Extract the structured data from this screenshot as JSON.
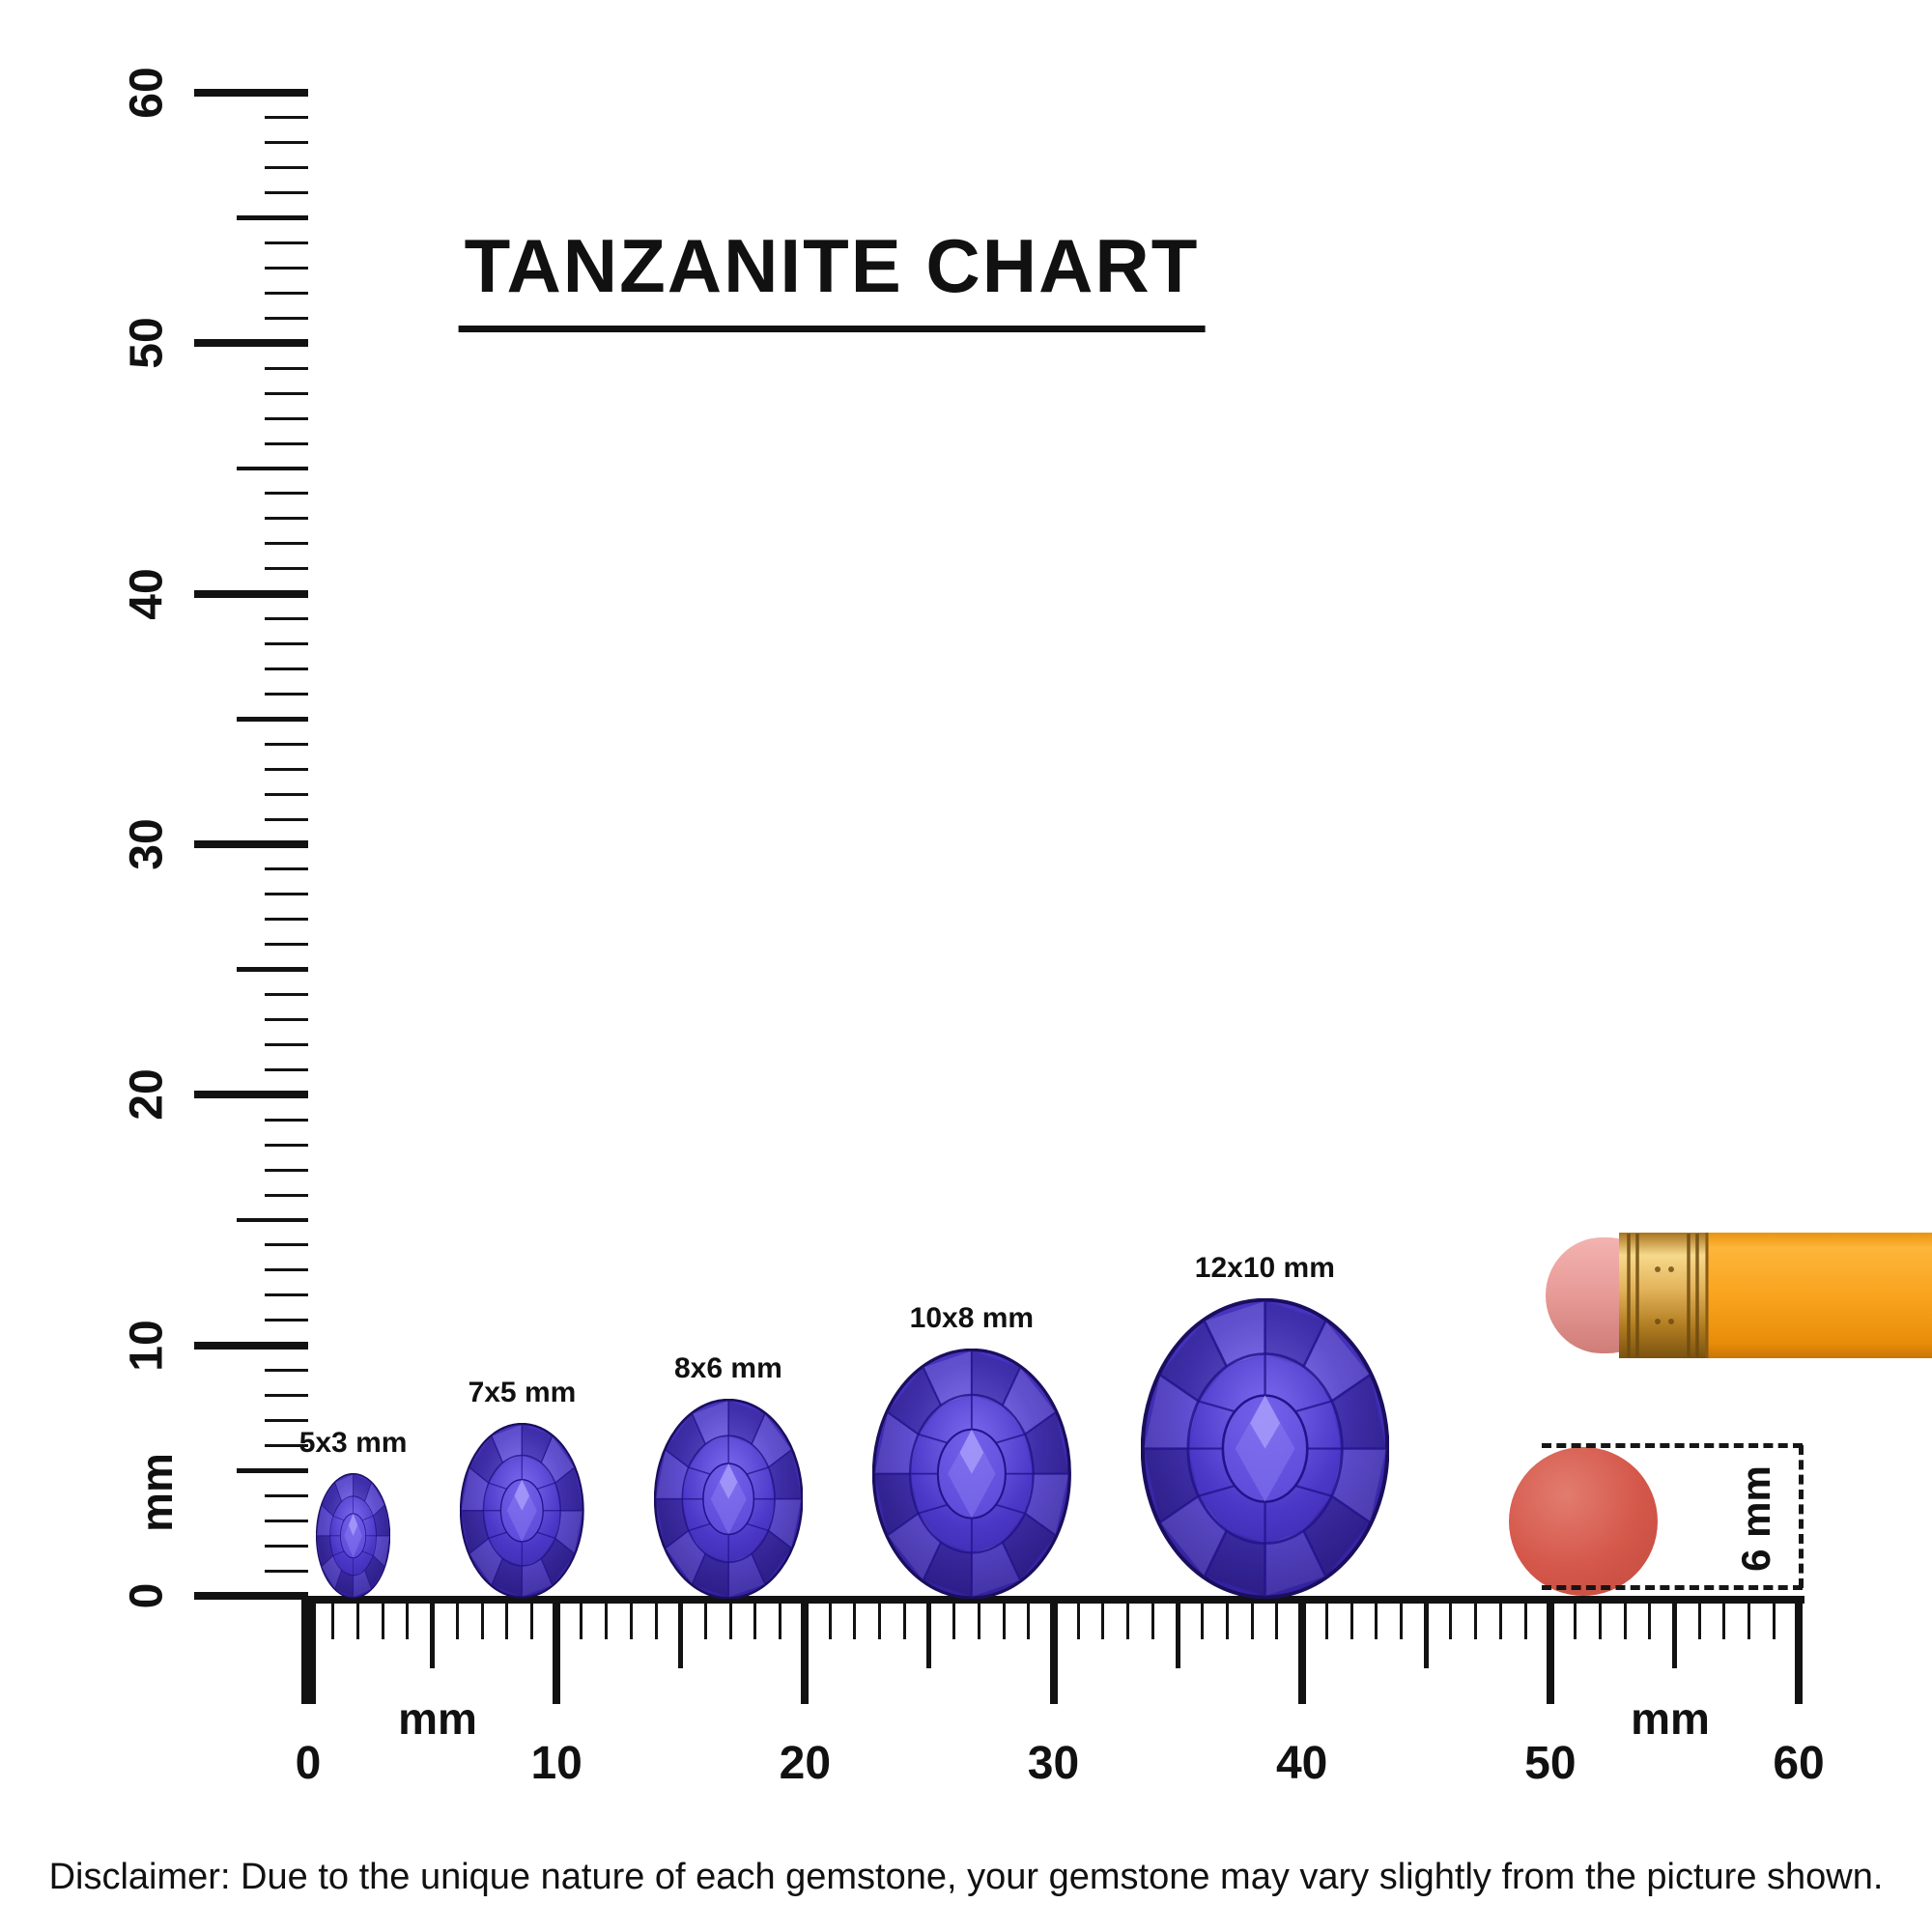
{
  "title": "TANZANITE CHART",
  "vertical_ruler": {
    "unit": "mm",
    "min": 0,
    "max": 60,
    "major_labels": [
      "0",
      "10",
      "20",
      "30",
      "40",
      "50",
      "60"
    ]
  },
  "horizontal_ruler": {
    "unit": "mm",
    "min": 0,
    "max": 60,
    "major_labels": [
      "0",
      "10",
      "20",
      "30",
      "40",
      "50",
      "60"
    ]
  },
  "gems": [
    {
      "label": "5x3 mm",
      "length_mm": 5,
      "width_mm": 3
    },
    {
      "label": "7x5 mm",
      "length_mm": 7,
      "width_mm": 5
    },
    {
      "label": "8x6 mm",
      "length_mm": 8,
      "width_mm": 6
    },
    {
      "label": "10x8 mm",
      "length_mm": 10,
      "width_mm": 8
    },
    {
      "label": "12x10 mm",
      "length_mm": 12,
      "width_mm": 10
    }
  ],
  "reference": {
    "eraser_dot_label": "6 mm"
  },
  "disclaimer": "Disclaimer: Due to the unique nature of each gemstone, your gemstone may vary slightly from the picture shown.",
  "colors": {
    "ink": "#111111",
    "gem_light": "#7d6cf0",
    "gem_primary": "#4b38c8",
    "gem_dark": "#1a0e5e",
    "pencil_body": "#f9a41f",
    "pencil_ferrule": "#e3b35b",
    "pencil_eraser": "#e79a96",
    "dot_red": "#d4574a"
  }
}
